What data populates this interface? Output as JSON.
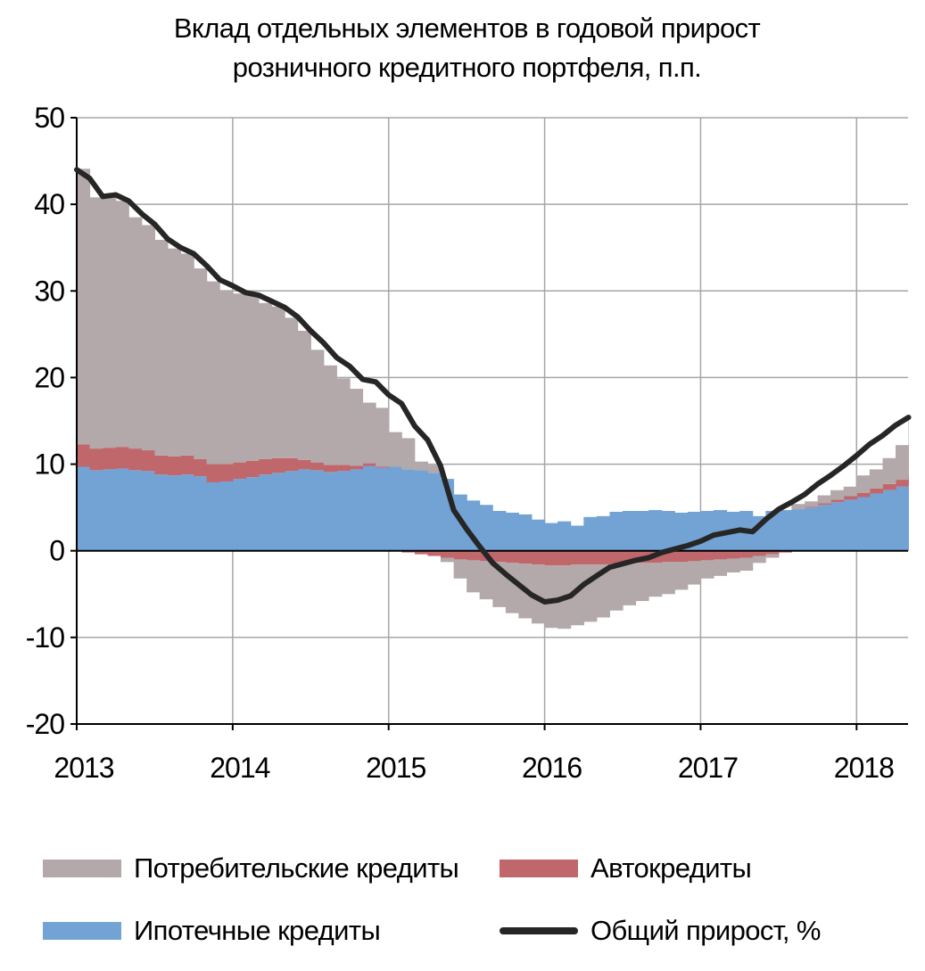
{
  "chart_data": {
    "type": "area",
    "title_lines": [
      "Вклад отдельных элементов в годовой прирост",
      "розничного кредитного портфеля, п.п."
    ],
    "xlabel": "",
    "ylabel": "",
    "x_tick_labels": [
      "2013",
      "2014",
      "2015",
      "2016",
      "2017",
      "2018"
    ],
    "y_ticks": [
      50,
      40,
      30,
      20,
      10,
      0,
      -10,
      -20
    ],
    "ylim": [
      -20,
      50
    ],
    "xlim": [
      2013.0,
      2018.33
    ],
    "grid": true,
    "legend_position": "bottom",
    "colors": {
      "consumer": "#b3a8aa",
      "auto": "#c0676b",
      "mortgage": "#73a2d4",
      "total": "#262626",
      "grid": "#a6a6a6",
      "axis": "#000000"
    },
    "x": [
      2013.0,
      2013.083,
      2013.167,
      2013.25,
      2013.333,
      2013.417,
      2013.5,
      2013.583,
      2013.667,
      2013.75,
      2013.833,
      2013.917,
      2014.0,
      2014.083,
      2014.167,
      2014.25,
      2014.333,
      2014.417,
      2014.5,
      2014.583,
      2014.667,
      2014.75,
      2014.833,
      2014.917,
      2015.0,
      2015.083,
      2015.167,
      2015.25,
      2015.333,
      2015.417,
      2015.5,
      2015.583,
      2015.667,
      2015.75,
      2015.833,
      2015.917,
      2016.0,
      2016.083,
      2016.167,
      2016.25,
      2016.333,
      2016.417,
      2016.5,
      2016.583,
      2016.667,
      2016.75,
      2016.833,
      2016.917,
      2017.0,
      2017.083,
      2017.167,
      2017.25,
      2017.333,
      2017.417,
      2017.5,
      2017.583,
      2017.667,
      2017.75,
      2017.833,
      2017.917,
      2018.0,
      2018.083,
      2018.167,
      2018.25,
      2018.333
    ],
    "series": [
      {
        "name": "Ипотечные кредиты",
        "key": "mortgage",
        "values": [
          9.7,
          9.3,
          9.4,
          9.5,
          9.3,
          9.2,
          8.8,
          8.7,
          8.8,
          8.6,
          7.9,
          8.0,
          8.3,
          8.5,
          8.8,
          9.0,
          9.2,
          9.4,
          9.3,
          9.1,
          9.2,
          9.4,
          9.8,
          9.6,
          9.7,
          9.4,
          9.3,
          9.0,
          8.3,
          6.5,
          5.8,
          5.3,
          4.6,
          4.4,
          4.2,
          3.6,
          3.2,
          3.4,
          2.9,
          3.9,
          4.0,
          4.5,
          4.6,
          4.6,
          4.7,
          4.6,
          4.4,
          4.5,
          4.6,
          4.7,
          4.5,
          4.6,
          4.0,
          4.6,
          4.7,
          4.8,
          5.0,
          5.3,
          5.6,
          5.9,
          6.2,
          6.6,
          7.0,
          7.4,
          7.9
        ]
      },
      {
        "name": "Автокредиты",
        "key": "auto",
        "values": [
          2.6,
          2.5,
          2.5,
          2.5,
          2.5,
          2.4,
          2.2,
          2.2,
          2.2,
          2.0,
          2.1,
          2.0,
          1.9,
          1.9,
          1.8,
          1.7,
          1.5,
          1.1,
          0.9,
          0.8,
          0.7,
          0.4,
          0.3,
          0.1,
          0.0,
          -0.2,
          -0.4,
          -0.6,
          -0.8,
          -1.0,
          -1.1,
          -1.2,
          -1.3,
          -1.4,
          -1.5,
          -1.6,
          -1.7,
          -1.7,
          -1.6,
          -1.6,
          -1.6,
          -1.5,
          -1.5,
          -1.4,
          -1.4,
          -1.3,
          -1.3,
          -1.2,
          -1.1,
          -1.0,
          -0.9,
          -0.8,
          -0.6,
          -0.4,
          -0.2,
          0.0,
          0.1,
          0.2,
          0.3,
          0.4,
          0.5,
          0.6,
          0.7,
          0.8,
          0.9
        ]
      },
      {
        "name": "Потребительские кредиты",
        "key": "consumer",
        "values": [
          31.8,
          29.0,
          29.2,
          28.4,
          26.7,
          26.0,
          24.9,
          24.0,
          23.3,
          22.0,
          21.1,
          20.1,
          19.5,
          19.1,
          18.0,
          17.5,
          16.2,
          14.9,
          13.0,
          11.5,
          10.0,
          8.9,
          7.0,
          6.8,
          4.0,
          3.6,
          1.0,
          0.9,
          -0.5,
          -2.2,
          -3.7,
          -4.4,
          -5.2,
          -5.8,
          -6.3,
          -6.8,
          -7.2,
          -7.3,
          -7.0,
          -6.6,
          -6.1,
          -5.4,
          -4.8,
          -4.4,
          -3.9,
          -3.7,
          -3.2,
          -2.7,
          -2.1,
          -1.9,
          -1.6,
          -1.5,
          -0.8,
          -0.4,
          0.0,
          0.6,
          0.6,
          0.9,
          1.1,
          1.1,
          2.0,
          2.2,
          3.0,
          4.0,
          6.5
        ]
      },
      {
        "name": "Общий прирост, %",
        "key": "total",
        "values": [
          44.0,
          43.0,
          40.9,
          41.1,
          40.4,
          38.9,
          37.7,
          36.0,
          35.0,
          34.3,
          32.9,
          31.3,
          30.6,
          29.8,
          29.5,
          28.8,
          28.1,
          27.0,
          25.4,
          24.0,
          22.3,
          21.3,
          19.8,
          19.5,
          18.0,
          17.0,
          14.4,
          12.8,
          9.8,
          4.7,
          2.5,
          0.5,
          -1.4,
          -2.7,
          -3.9,
          -5.1,
          -5.9,
          -5.7,
          -5.2,
          -3.9,
          -2.9,
          -1.9,
          -1.5,
          -1.1,
          -0.8,
          -0.2,
          0.2,
          0.6,
          1.1,
          1.8,
          2.1,
          2.4,
          2.2,
          3.6,
          4.8,
          5.6,
          6.5,
          7.7,
          8.7,
          9.8,
          11.0,
          12.3,
          13.3,
          14.5,
          15.4
        ]
      }
    ],
    "legend": [
      {
        "key": "consumer",
        "label": "Потребительские кредиты",
        "kind": "area"
      },
      {
        "key": "auto",
        "label": "Автокредиты",
        "kind": "area"
      },
      {
        "key": "mortgage",
        "label": "Ипотечные кредиты",
        "kind": "area"
      },
      {
        "key": "total",
        "label": "Общий прирост, %",
        "kind": "line"
      }
    ]
  }
}
